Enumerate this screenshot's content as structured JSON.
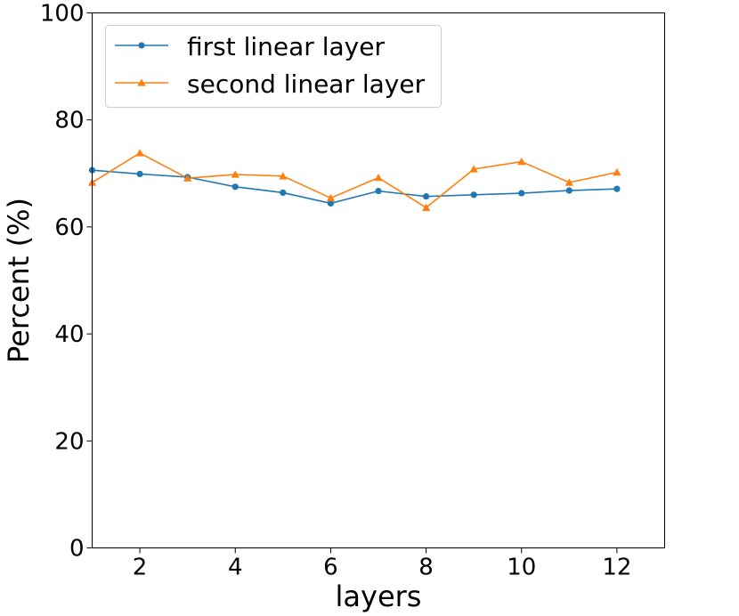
{
  "chart_data": {
    "type": "line",
    "title": "",
    "xlabel": "layers",
    "ylabel": "Percent (%)",
    "xlim": [
      1,
      13
    ],
    "ylim": [
      0,
      100
    ],
    "x_ticks": [
      2,
      4,
      6,
      8,
      10,
      12
    ],
    "y_ticks": [
      0,
      20,
      40,
      60,
      80,
      100
    ],
    "grid": false,
    "legend_position": "top-left",
    "x": [
      1,
      2,
      3,
      4,
      5,
      6,
      7,
      8,
      9,
      10,
      11,
      12
    ],
    "series": [
      {
        "name": "first linear layer",
        "color": "#1f77b4",
        "marker": "circle",
        "values": [
          70.6,
          69.9,
          69.3,
          67.5,
          66.4,
          64.4,
          66.7,
          65.7,
          66.0,
          66.3,
          66.8,
          67.1
        ]
      },
      {
        "name": "second linear layer",
        "color": "#ff7f0e",
        "marker": "triangle",
        "values": [
          68.3,
          73.8,
          69.1,
          69.8,
          69.5,
          65.4,
          69.2,
          63.6,
          70.8,
          72.2,
          68.3,
          70.2
        ]
      }
    ]
  }
}
